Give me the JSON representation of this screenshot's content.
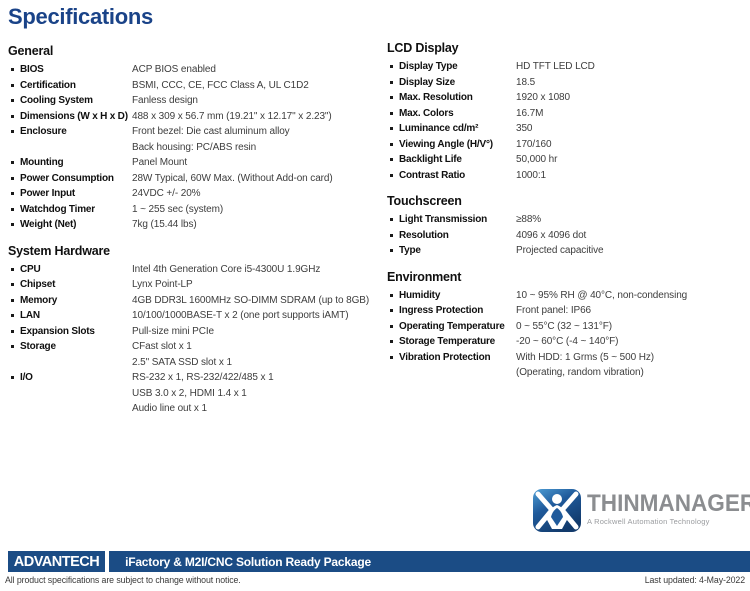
{
  "page": {
    "title": "Specifications"
  },
  "colors": {
    "accent_blue": "#1a4388",
    "bar_blue": "#1b4c85",
    "logo_gray": "#8b8d90"
  },
  "columns": {
    "left": [
      {
        "heading": "General",
        "rows": [
          {
            "label": "BIOS",
            "values": [
              "ACP BIOS enabled"
            ]
          },
          {
            "label": "Certification",
            "values": [
              "BSMI, CCC, CE, FCC Class A, UL C1D2"
            ]
          },
          {
            "label": "Cooling System",
            "values": [
              "Fanless design"
            ]
          },
          {
            "label": "Dimensions (W x H x D)",
            "values": [
              "488 x 309 x 56.7 mm (19.21\" x 12.17\" x 2.23\")"
            ]
          },
          {
            "label": "Enclosure",
            "values": [
              "Front bezel: Die cast aluminum alloy",
              "Back housing: PC/ABS resin"
            ]
          },
          {
            "label": "Mounting",
            "values": [
              "Panel Mount"
            ]
          },
          {
            "label": "Power Consumption",
            "values": [
              "28W Typical, 60W Max. (Without Add-on card)"
            ]
          },
          {
            "label": "Power Input",
            "values": [
              "24VDC +/- 20%"
            ]
          },
          {
            "label": "Watchdog Timer",
            "values": [
              "1 ~ 255 sec (system)"
            ]
          },
          {
            "label": "Weight (Net)",
            "values": [
              "7kg (15.44 lbs)"
            ]
          }
        ]
      },
      {
        "heading": "System Hardware",
        "rows": [
          {
            "label": "CPU",
            "values": [
              "Intel 4th Generation Core i5-4300U 1.9GHz"
            ]
          },
          {
            "label": "Chipset",
            "values": [
              "Lynx Point-LP"
            ]
          },
          {
            "label": "Memory",
            "values": [
              "4GB DDR3L 1600MHz SO-DIMM SDRAM (up to 8GB)"
            ]
          },
          {
            "label": "LAN",
            "values": [
              "10/100/1000BASE-T x 2 (one port supports iAMT)"
            ]
          },
          {
            "label": "Expansion Slots",
            "values": [
              "Pull-size mini PCIe"
            ]
          },
          {
            "label": "Storage",
            "values": [
              "CFast slot x 1",
              "2.5\" SATA SSD slot x 1"
            ]
          },
          {
            "label": "I/O",
            "values": [
              "RS-232 x 1, RS-232/422/485 x 1",
              "USB 3.0 x 2, HDMI 1.4 x 1",
              "Audio line out x 1"
            ]
          }
        ]
      }
    ],
    "right": [
      {
        "heading": "LCD Display",
        "rows": [
          {
            "label": "Display Type",
            "values": [
              "HD TFT LED LCD"
            ]
          },
          {
            "label": "Display Size",
            "values": [
              "18.5"
            ]
          },
          {
            "label": "Max. Resolution",
            "values": [
              "1920 x 1080"
            ]
          },
          {
            "label": "Max. Colors",
            "values": [
              "16.7M"
            ]
          },
          {
            "label": "Luminance cd/m²",
            "values": [
              "350"
            ]
          },
          {
            "label": "Viewing Angle (H/V°)",
            "values": [
              "170/160"
            ]
          },
          {
            "label": "Backlight Life",
            "values": [
              "50,000 hr"
            ]
          },
          {
            "label": "Contrast Ratio",
            "values": [
              "1000:1"
            ]
          }
        ]
      },
      {
        "heading": "Touchscreen",
        "rows": [
          {
            "label": "Light Transmission",
            "values": [
              "≥88%"
            ]
          },
          {
            "label": "Resolution",
            "values": [
              "4096 x 4096 dot"
            ]
          },
          {
            "label": "Type",
            "values": [
              "Projected capacitive"
            ]
          }
        ]
      },
      {
        "heading": "Environment",
        "rows": [
          {
            "label": "Humidity",
            "values": [
              "10 ~ 95% RH @ 40°C, non-condensing"
            ]
          },
          {
            "label": "Ingress Protection",
            "values": [
              "Front panel: IP66"
            ]
          },
          {
            "label": "Operating Temperature",
            "values": [
              "0 ~ 55°C (32 ~ 131°F)"
            ]
          },
          {
            "label": "Storage Temperature",
            "values": [
              "-20 ~ 60°C (-4 ~ 140°F)"
            ]
          },
          {
            "label": "Vibration Protection",
            "values": [
              "With HDD: 1 Grms (5 ~ 500 Hz)",
              "(Operating, random vibration)"
            ]
          }
        ]
      }
    ]
  },
  "thinmanager": {
    "name": "THINMANAGER",
    "tagline": "A Rockwell Automation Technology"
  },
  "footer": {
    "brand": "ADVANTECH",
    "package_title": "iFactory & M2I/CNC Solution Ready Package",
    "disclaimer": "All product specifications are subject to change without notice.",
    "last_updated": "Last updated: 4-May-2022"
  }
}
